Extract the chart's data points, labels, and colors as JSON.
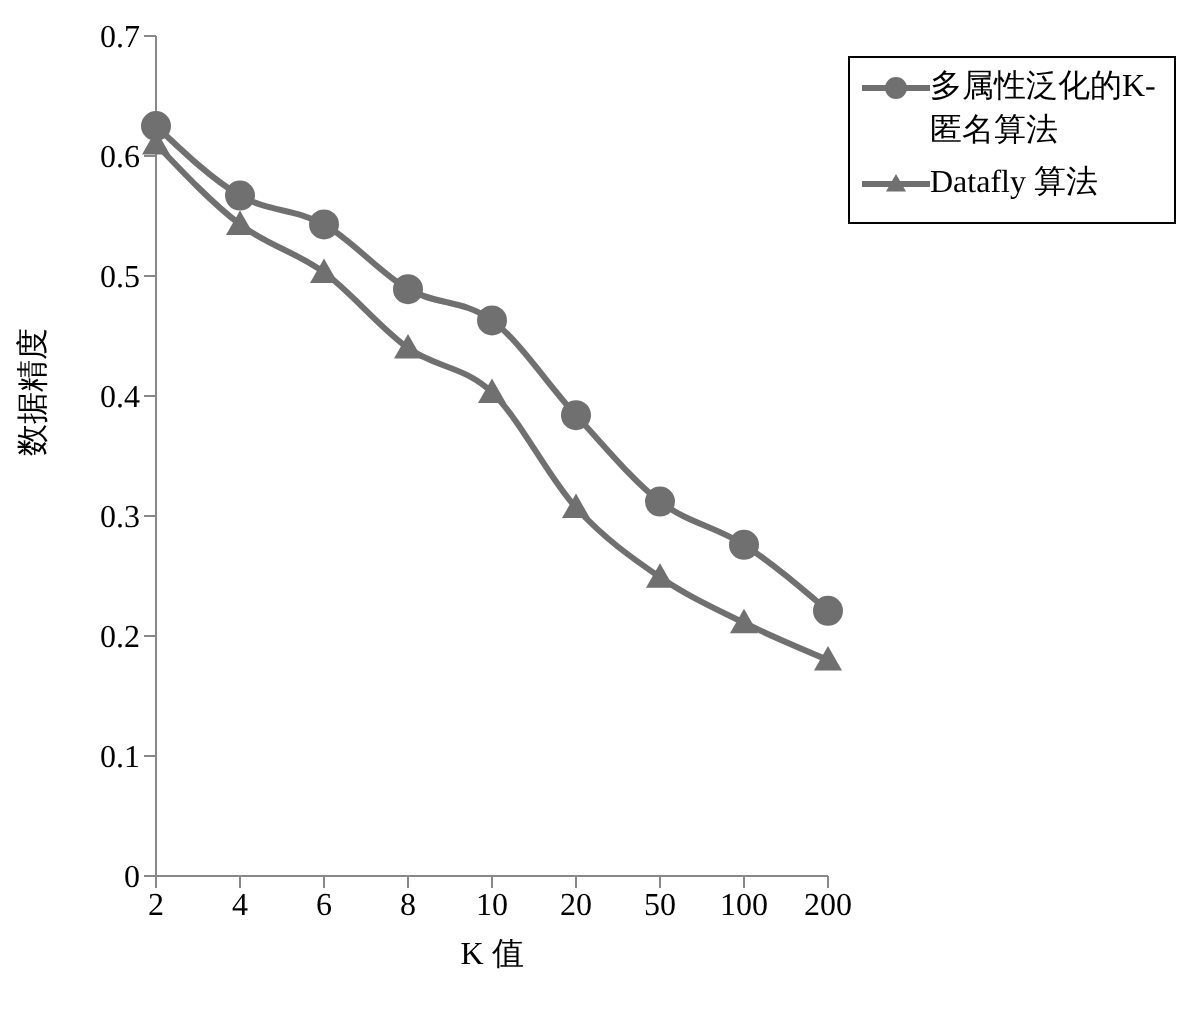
{
  "chart_data": {
    "type": "line",
    "xlabel": "K 值",
    "ylabel": "数据精度",
    "categories": [
      "2",
      "4",
      "6",
      "8",
      "10",
      "20",
      "50",
      "100",
      "200"
    ],
    "series": [
      {
        "name": "多属性泛化的K-匿名算法",
        "color": "#707070",
        "marker": "circle",
        "values": [
          0.625,
          0.567,
          0.543,
          0.489,
          0.463,
          0.384,
          0.312,
          0.276,
          0.221
        ]
      },
      {
        "name": "Datafly 算法",
        "color": "#707070",
        "marker": "triangle",
        "values": [
          0.61,
          0.543,
          0.503,
          0.44,
          0.403,
          0.307,
          0.249,
          0.211,
          0.18
        ]
      }
    ],
    "ylim": [
      0,
      0.7
    ],
    "yticks": [
      0,
      0.1,
      0.2,
      0.3,
      0.4,
      0.5,
      0.6,
      0.7
    ],
    "grid": false,
    "legend": "top right",
    "line_style": "solid"
  }
}
